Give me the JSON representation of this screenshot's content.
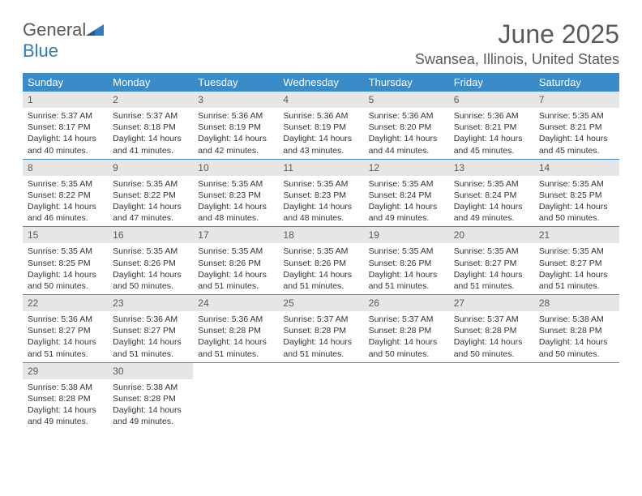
{
  "logo": {
    "text_general": "General",
    "text_blue": "Blue"
  },
  "title": "June 2025",
  "location": "Swansea, Illinois, United States",
  "weekdays": [
    "Sunday",
    "Monday",
    "Tuesday",
    "Wednesday",
    "Thursday",
    "Friday",
    "Saturday"
  ],
  "colors": {
    "header_bg": "#3b8bc9",
    "day_number_bg": "#e6e6e6",
    "text_gray": "#5a5a5a",
    "logo_blue": "#2e7cc0"
  },
  "days": [
    {
      "num": "1",
      "sunrise": "Sunrise: 5:37 AM",
      "sunset": "Sunset: 8:17 PM",
      "daylight": "Daylight: 14 hours and 40 minutes."
    },
    {
      "num": "2",
      "sunrise": "Sunrise: 5:37 AM",
      "sunset": "Sunset: 8:18 PM",
      "daylight": "Daylight: 14 hours and 41 minutes."
    },
    {
      "num": "3",
      "sunrise": "Sunrise: 5:36 AM",
      "sunset": "Sunset: 8:19 PM",
      "daylight": "Daylight: 14 hours and 42 minutes."
    },
    {
      "num": "4",
      "sunrise": "Sunrise: 5:36 AM",
      "sunset": "Sunset: 8:19 PM",
      "daylight": "Daylight: 14 hours and 43 minutes."
    },
    {
      "num": "5",
      "sunrise": "Sunrise: 5:36 AM",
      "sunset": "Sunset: 8:20 PM",
      "daylight": "Daylight: 14 hours and 44 minutes."
    },
    {
      "num": "6",
      "sunrise": "Sunrise: 5:36 AM",
      "sunset": "Sunset: 8:21 PM",
      "daylight": "Daylight: 14 hours and 45 minutes."
    },
    {
      "num": "7",
      "sunrise": "Sunrise: 5:35 AM",
      "sunset": "Sunset: 8:21 PM",
      "daylight": "Daylight: 14 hours and 45 minutes."
    },
    {
      "num": "8",
      "sunrise": "Sunrise: 5:35 AM",
      "sunset": "Sunset: 8:22 PM",
      "daylight": "Daylight: 14 hours and 46 minutes."
    },
    {
      "num": "9",
      "sunrise": "Sunrise: 5:35 AM",
      "sunset": "Sunset: 8:22 PM",
      "daylight": "Daylight: 14 hours and 47 minutes."
    },
    {
      "num": "10",
      "sunrise": "Sunrise: 5:35 AM",
      "sunset": "Sunset: 8:23 PM",
      "daylight": "Daylight: 14 hours and 48 minutes."
    },
    {
      "num": "11",
      "sunrise": "Sunrise: 5:35 AM",
      "sunset": "Sunset: 8:23 PM",
      "daylight": "Daylight: 14 hours and 48 minutes."
    },
    {
      "num": "12",
      "sunrise": "Sunrise: 5:35 AM",
      "sunset": "Sunset: 8:24 PM",
      "daylight": "Daylight: 14 hours and 49 minutes."
    },
    {
      "num": "13",
      "sunrise": "Sunrise: 5:35 AM",
      "sunset": "Sunset: 8:24 PM",
      "daylight": "Daylight: 14 hours and 49 minutes."
    },
    {
      "num": "14",
      "sunrise": "Sunrise: 5:35 AM",
      "sunset": "Sunset: 8:25 PM",
      "daylight": "Daylight: 14 hours and 50 minutes."
    },
    {
      "num": "15",
      "sunrise": "Sunrise: 5:35 AM",
      "sunset": "Sunset: 8:25 PM",
      "daylight": "Daylight: 14 hours and 50 minutes."
    },
    {
      "num": "16",
      "sunrise": "Sunrise: 5:35 AM",
      "sunset": "Sunset: 8:26 PM",
      "daylight": "Daylight: 14 hours and 50 minutes."
    },
    {
      "num": "17",
      "sunrise": "Sunrise: 5:35 AM",
      "sunset": "Sunset: 8:26 PM",
      "daylight": "Daylight: 14 hours and 51 minutes."
    },
    {
      "num": "18",
      "sunrise": "Sunrise: 5:35 AM",
      "sunset": "Sunset: 8:26 PM",
      "daylight": "Daylight: 14 hours and 51 minutes."
    },
    {
      "num": "19",
      "sunrise": "Sunrise: 5:35 AM",
      "sunset": "Sunset: 8:26 PM",
      "daylight": "Daylight: 14 hours and 51 minutes."
    },
    {
      "num": "20",
      "sunrise": "Sunrise: 5:35 AM",
      "sunset": "Sunset: 8:27 PM",
      "daylight": "Daylight: 14 hours and 51 minutes."
    },
    {
      "num": "21",
      "sunrise": "Sunrise: 5:35 AM",
      "sunset": "Sunset: 8:27 PM",
      "daylight": "Daylight: 14 hours and 51 minutes."
    },
    {
      "num": "22",
      "sunrise": "Sunrise: 5:36 AM",
      "sunset": "Sunset: 8:27 PM",
      "daylight": "Daylight: 14 hours and 51 minutes."
    },
    {
      "num": "23",
      "sunrise": "Sunrise: 5:36 AM",
      "sunset": "Sunset: 8:27 PM",
      "daylight": "Daylight: 14 hours and 51 minutes."
    },
    {
      "num": "24",
      "sunrise": "Sunrise: 5:36 AM",
      "sunset": "Sunset: 8:28 PM",
      "daylight": "Daylight: 14 hours and 51 minutes."
    },
    {
      "num": "25",
      "sunrise": "Sunrise: 5:37 AM",
      "sunset": "Sunset: 8:28 PM",
      "daylight": "Daylight: 14 hours and 51 minutes."
    },
    {
      "num": "26",
      "sunrise": "Sunrise: 5:37 AM",
      "sunset": "Sunset: 8:28 PM",
      "daylight": "Daylight: 14 hours and 50 minutes."
    },
    {
      "num": "27",
      "sunrise": "Sunrise: 5:37 AM",
      "sunset": "Sunset: 8:28 PM",
      "daylight": "Daylight: 14 hours and 50 minutes."
    },
    {
      "num": "28",
      "sunrise": "Sunrise: 5:38 AM",
      "sunset": "Sunset: 8:28 PM",
      "daylight": "Daylight: 14 hours and 50 minutes."
    },
    {
      "num": "29",
      "sunrise": "Sunrise: 5:38 AM",
      "sunset": "Sunset: 8:28 PM",
      "daylight": "Daylight: 14 hours and 49 minutes."
    },
    {
      "num": "30",
      "sunrise": "Sunrise: 5:38 AM",
      "sunset": "Sunset: 8:28 PM",
      "daylight": "Daylight: 14 hours and 49 minutes."
    }
  ]
}
